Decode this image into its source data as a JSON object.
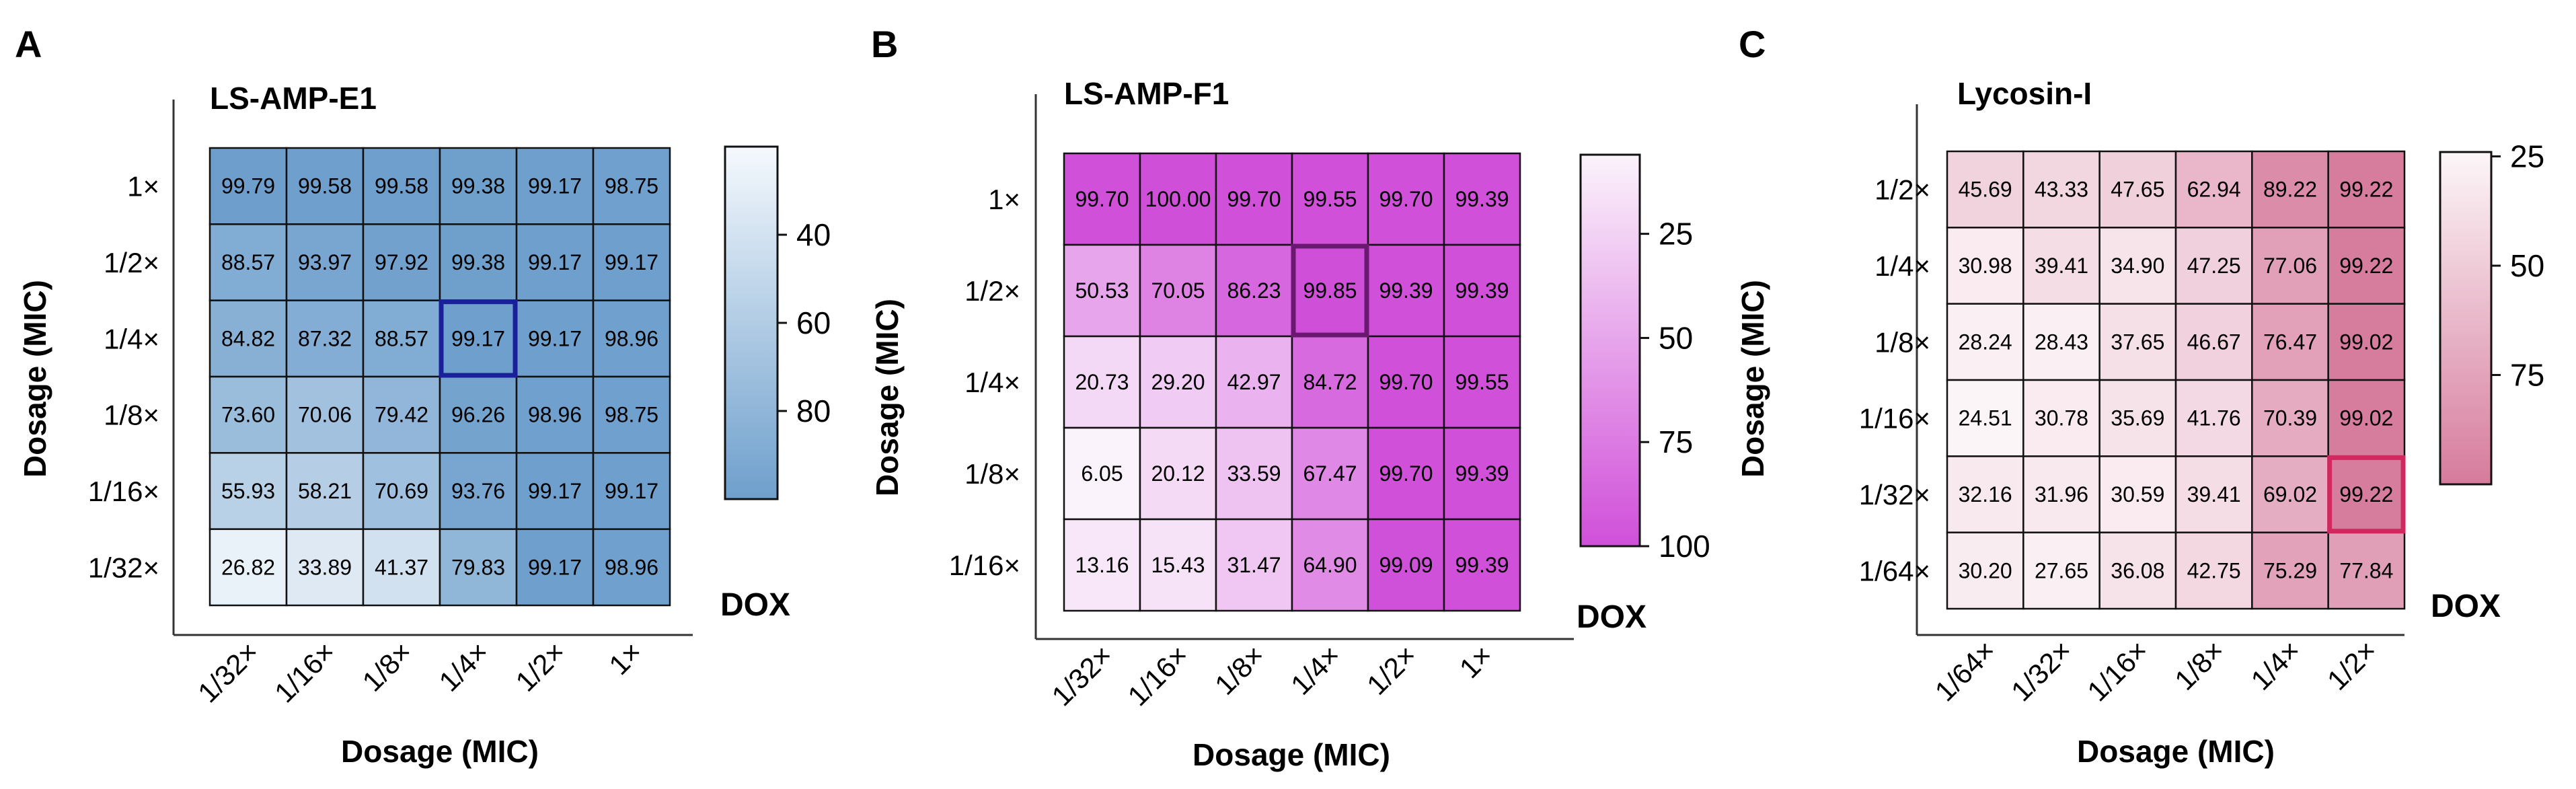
{
  "chart_data": [
    {
      "type": "heatmap",
      "panel_letter": "A",
      "title": "LS-AMP-E1",
      "xlabel": "Dosage (MIC)",
      "ylabel": "Dosage (MIC)",
      "x_ticks": [
        "1/32×",
        "1/16×",
        "1/8×",
        "1/4×",
        "1/2×",
        "1×"
      ],
      "y_ticks": [
        "1×",
        "1/2×",
        "1/4×",
        "1/8×",
        "1/16×",
        "1/32×"
      ],
      "values": [
        [
          "99.79",
          "99.58",
          "99.58",
          "99.38",
          "99.17",
          "98.75"
        ],
        [
          "88.57",
          "93.97",
          "97.92",
          "99.38",
          "99.17",
          "99.17"
        ],
        [
          "84.82",
          "87.32",
          "88.57",
          "99.17",
          "99.17",
          "98.96"
        ],
        [
          "73.60",
          "70.06",
          "79.42",
          "96.26",
          "98.96",
          "98.75"
        ],
        [
          "55.93",
          "58.21",
          "70.69",
          "93.76",
          "99.17",
          "99.17"
        ],
        [
          "26.82",
          "33.89",
          "41.37",
          "79.83",
          "99.17",
          "98.96"
        ]
      ],
      "highlight_cell": [
        2,
        3
      ],
      "colorbar": {
        "label": "DOX",
        "ticks": [
          "40",
          "60",
          "80"
        ],
        "tick_values": [
          40,
          60,
          80
        ],
        "range": [
          20,
          100
        ],
        "low_color": "#f5f9fd",
        "high_color": "#6e9fcc"
      },
      "highlight_color": "#1a1f9a"
    },
    {
      "type": "heatmap",
      "panel_letter": "B",
      "title": "LS-AMP-F1",
      "xlabel": "Dosage (MIC)",
      "ylabel": "Dosage (MIC)",
      "x_ticks": [
        "1/32×",
        "1/16×",
        "1/8×",
        "1/4×",
        "1/2×",
        "1×"
      ],
      "y_ticks": [
        "1×",
        "1/2×",
        "1/4×",
        "1/8×",
        "1/16×"
      ],
      "values": [
        [
          "99.70",
          "100.00",
          "99.70",
          "99.55",
          "99.70",
          "99.39"
        ],
        [
          "50.53",
          "70.05",
          "86.23",
          "99.85",
          "99.39",
          "99.39"
        ],
        [
          "20.73",
          "29.20",
          "42.97",
          "84.72",
          "99.70",
          "99.55"
        ],
        [
          "6.05",
          "20.12",
          "33.59",
          "67.47",
          "99.70",
          "99.39"
        ],
        [
          "13.16",
          "15.43",
          "31.47",
          "64.90",
          "99.09",
          "99.39"
        ]
      ],
      "highlight_cell": [
        1,
        3
      ],
      "colorbar": {
        "label": "DOX",
        "ticks": [
          "25",
          "50",
          "75",
          "100"
        ],
        "tick_values": [
          25,
          50,
          75,
          100
        ],
        "range": [
          6,
          100
        ],
        "low_color": "#fbf3fb",
        "high_color": "#d04fd9"
      },
      "highlight_color": "#6a1870"
    },
    {
      "type": "heatmap",
      "panel_letter": "C",
      "title": "Lycosin-I",
      "xlabel": "Dosage (MIC)",
      "ylabel": "Dosage (MIC)",
      "x_ticks": [
        "1/64×",
        "1/32×",
        "1/16×",
        "1/8×",
        "1/4×",
        "1/2×"
      ],
      "y_ticks": [
        "1/2×",
        "1/4×",
        "1/8×",
        "1/16×",
        "1/32×",
        "1/64×"
      ],
      "values": [
        [
          "45.69",
          "43.33",
          "47.65",
          "62.94",
          "89.22",
          "99.22"
        ],
        [
          "30.98",
          "39.41",
          "34.90",
          "47.25",
          "77.06",
          "99.22"
        ],
        [
          "28.24",
          "28.43",
          "37.65",
          "46.67",
          "76.47",
          "99.02"
        ],
        [
          "24.51",
          "30.78",
          "35.69",
          "41.76",
          "70.39",
          "99.02"
        ],
        [
          "32.16",
          "31.96",
          "30.59",
          "39.41",
          "69.02",
          "99.22"
        ],
        [
          "30.20",
          "27.65",
          "36.08",
          "42.75",
          "75.29",
          "77.84"
        ]
      ],
      "highlight_cell": [
        4,
        5
      ],
      "colorbar": {
        "label": "DOX",
        "ticks": [
          "25",
          "50",
          "75"
        ],
        "tick_values": [
          25,
          50,
          75
        ],
        "range": [
          24,
          100
        ],
        "low_color": "#fcf6f8",
        "high_color": "#d67b9c"
      },
      "highlight_color": "#d1285f"
    }
  ]
}
